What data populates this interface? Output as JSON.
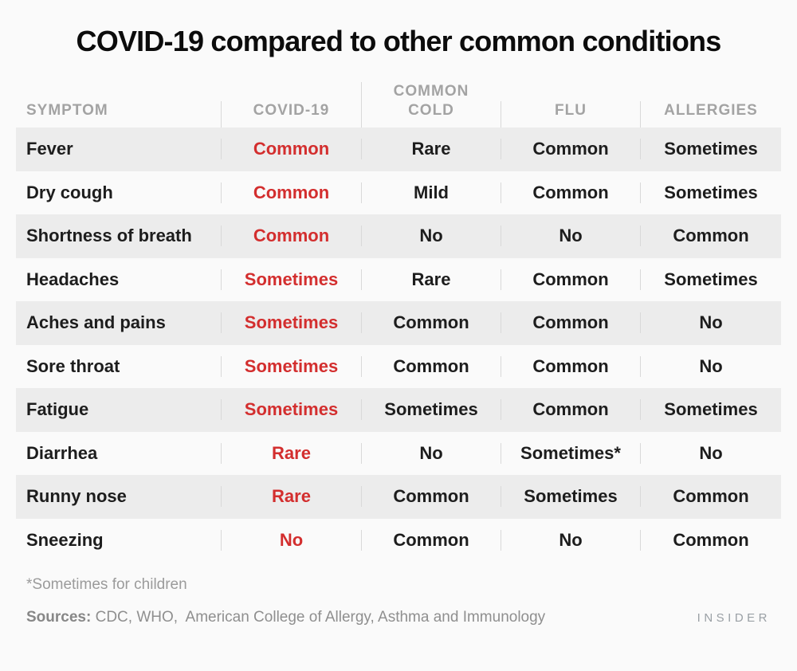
{
  "page": {
    "title": "COVID-19 compared to other common conditions",
    "footnote": "*Sometimes for children",
    "sources_label": "Sources:",
    "sources_text": " CDC, WHO,  American College of Allergy, Asthma and Immunology",
    "brand": "INSIDER"
  },
  "colors": {
    "background": "#fafafa",
    "row_shade": "#ececec",
    "divider": "#d9d9d9",
    "header_gray": "#a3a3a3",
    "body_text": "#1d1d1d",
    "accent_red": "#d32e2e"
  },
  "chart_data": {
    "type": "table",
    "title": "COVID-19 compared to other common conditions",
    "columns": [
      "SYMPTOM",
      "COVID-19",
      "COMMON COLD",
      "FLU",
      "ALLERGIES"
    ],
    "highlight_column": "COVID-19",
    "highlight_color": "#d32e2e",
    "rows": [
      {
        "symptom": "Fever",
        "values": [
          "Common",
          "Rare",
          "Common",
          "Sometimes"
        ]
      },
      {
        "symptom": "Dry cough",
        "values": [
          "Common",
          "Mild",
          "Common",
          "Sometimes"
        ]
      },
      {
        "symptom": "Shortness of breath",
        "values": [
          "Common",
          "No",
          "No",
          "Common"
        ]
      },
      {
        "symptom": "Headaches",
        "values": [
          "Sometimes",
          "Rare",
          "Common",
          "Sometimes"
        ]
      },
      {
        "symptom": "Aches and pains",
        "values": [
          "Sometimes",
          "Common",
          "Common",
          "No"
        ]
      },
      {
        "symptom": "Sore throat",
        "values": [
          "Sometimes",
          "Common",
          "Common",
          "No"
        ]
      },
      {
        "symptom": "Fatigue",
        "values": [
          "Sometimes",
          "Sometimes",
          "Common",
          "Sometimes"
        ]
      },
      {
        "symptom": "Diarrhea",
        "values": [
          "Rare",
          "No",
          "Sometimes*",
          "No"
        ]
      },
      {
        "symptom": "Runny nose",
        "values": [
          "Rare",
          "Common",
          "Sometimes",
          "Common"
        ]
      },
      {
        "symptom": "Sneezing",
        "values": [
          "No",
          "Common",
          "No",
          "Common"
        ]
      }
    ],
    "footnote": "*Sometimes for children",
    "sources": "Sources: CDC, WHO,  American College of Allergy, Asthma and Immunology"
  }
}
